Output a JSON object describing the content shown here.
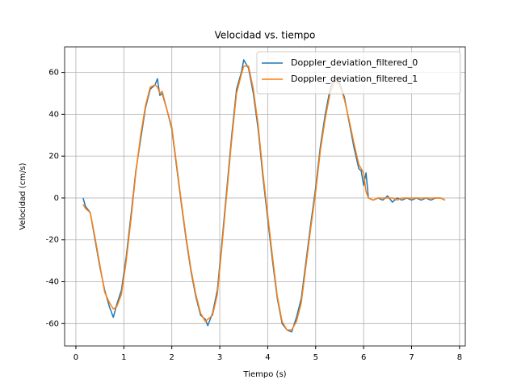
{
  "chart_data": {
    "type": "line",
    "title": "Velocidad vs. tiempo",
    "x_label": "Tiempo (s)",
    "y_label": "Velocidad (cm/s)",
    "x": [
      0.15,
      0.2,
      0.3,
      0.4,
      0.5,
      0.6,
      0.7,
      0.78,
      0.85,
      0.95,
      1.05,
      1.15,
      1.25,
      1.35,
      1.45,
      1.55,
      1.65,
      1.7,
      1.75,
      1.8,
      1.9,
      2.0,
      2.1,
      2.2,
      2.3,
      2.4,
      2.5,
      2.6,
      2.7,
      2.75,
      2.85,
      2.95,
      3.05,
      3.15,
      3.25,
      3.35,
      3.45,
      3.5,
      3.6,
      3.7,
      3.8,
      3.9,
      4.0,
      4.1,
      4.2,
      4.3,
      4.4,
      4.5,
      4.6,
      4.7,
      4.8,
      4.9,
      5.0,
      5.1,
      5.2,
      5.3,
      5.4,
      5.5,
      5.6,
      5.7,
      5.8,
      5.9,
      5.95,
      6.0,
      6.05,
      6.1,
      6.2,
      6.3,
      6.4,
      6.5,
      6.6,
      6.7,
      6.8,
      6.9,
      7.0,
      7.1,
      7.2,
      7.3,
      7.4,
      7.5,
      7.6,
      7.7
    ],
    "series": [
      {
        "name": "Doppler_deviation_filtered_0",
        "color": "#1f77b4",
        "values": [
          0,
          -4,
          -7,
          -20,
          -33,
          -44,
          -52,
          -57,
          -51,
          -44,
          -28,
          -8,
          13,
          28,
          43,
          52,
          54,
          57,
          49,
          50,
          42,
          33,
          15,
          -3,
          -20,
          -35,
          -47,
          -56,
          -58,
          -61,
          -55,
          -44,
          -20,
          5,
          30,
          52,
          60,
          66,
          62,
          50,
          33,
          10,
          -10,
          -30,
          -48,
          -60,
          -63,
          -64,
          -57,
          -48,
          -30,
          -12,
          5,
          25,
          40,
          52,
          58,
          55,
          48,
          36,
          24,
          14,
          13,
          6,
          12,
          0,
          -1,
          0,
          -1,
          1,
          -2,
          0,
          -1,
          0,
          -1,
          0,
          -1,
          0,
          -1,
          0,
          0,
          -1
        ]
      },
      {
        "name": "Doppler_deviation_filtered_1",
        "color": "#ff7f0e",
        "values": [
          -3,
          -5,
          -7,
          -19,
          -32,
          -45,
          -50,
          -53,
          -52,
          -46,
          -30,
          -10,
          12,
          30,
          44,
          53,
          54,
          53,
          50,
          51,
          42,
          34,
          16,
          -2,
          -19,
          -34,
          -46,
          -55,
          -59,
          -58,
          -56,
          -46,
          -22,
          3,
          28,
          50,
          59,
          63,
          63,
          52,
          35,
          12,
          -8,
          -28,
          -47,
          -59,
          -63,
          -63,
          -59,
          -50,
          -32,
          -14,
          3,
          23,
          38,
          50,
          56,
          54,
          47,
          37,
          26,
          16,
          14,
          12,
          3,
          0,
          -1,
          0,
          0,
          0,
          0,
          -1,
          0,
          0,
          0,
          0,
          0,
          0,
          0,
          0,
          0,
          -1
        ]
      }
    ],
    "xlim": [
      -0.235,
      8.12
    ],
    "ylim": [
      -70.7,
      72.2
    ],
    "xticks": [
      0,
      1,
      2,
      3,
      4,
      5,
      6,
      7,
      8
    ],
    "yticks": [
      -60,
      -40,
      -20,
      0,
      20,
      40,
      60
    ],
    "grid": true,
    "legend": "upper right"
  }
}
